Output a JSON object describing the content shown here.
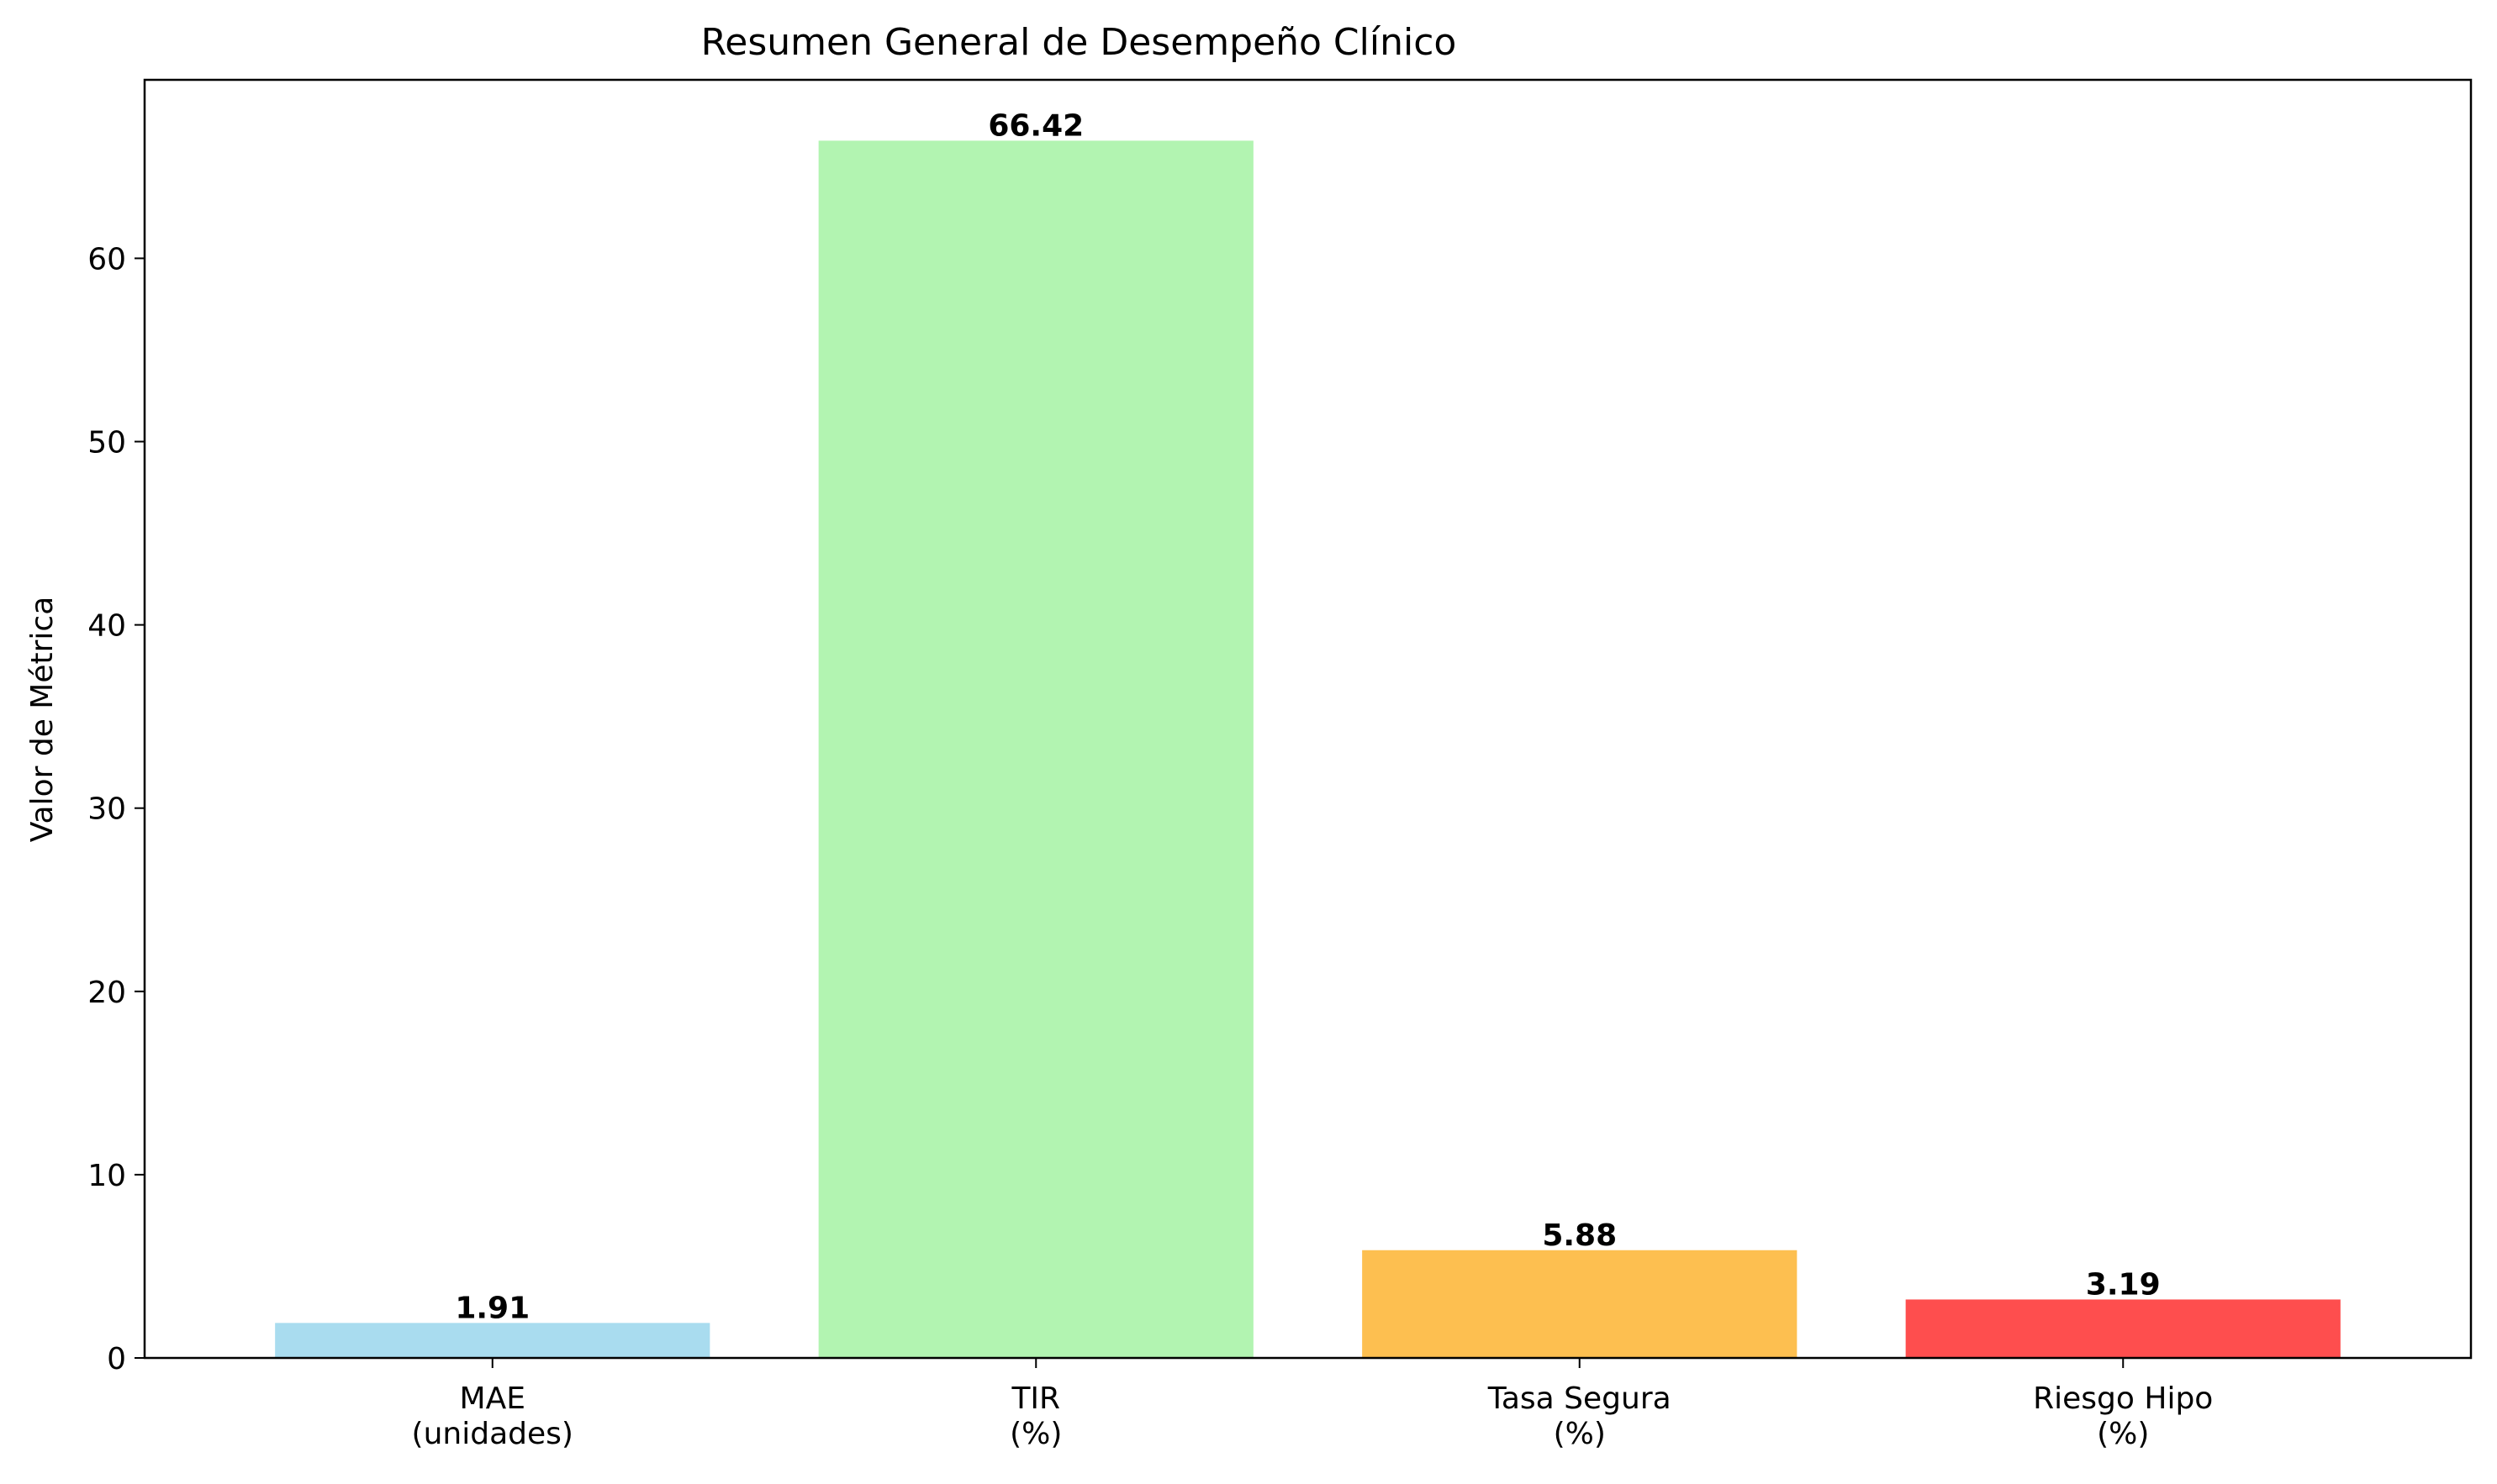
{
  "chart_data": {
    "type": "bar",
    "title": "Resumen General de Desempeño Clínico",
    "xlabel": "",
    "ylabel": "Valor de Métrica",
    "categories": [
      [
        "MAE",
        "(unidades)"
      ],
      [
        "TIR",
        "(%)"
      ],
      [
        "Tasa Segura",
        "(%)"
      ],
      [
        "Riesgo Hipo",
        "(%)"
      ]
    ],
    "values": [
      1.91,
      66.42,
      5.88,
      3.19
    ],
    "value_labels": [
      "1.91",
      "66.42",
      "5.88",
      "3.19"
    ],
    "colors": [
      "#a9dcef",
      "#b2f4b1",
      "#fdbf50",
      "#fe4e4e"
    ],
    "ylim": [
      0,
      69.74
    ],
    "yticks": [
      0,
      10,
      20,
      30,
      40,
      50,
      60
    ],
    "grid": false,
    "legend": "none"
  }
}
